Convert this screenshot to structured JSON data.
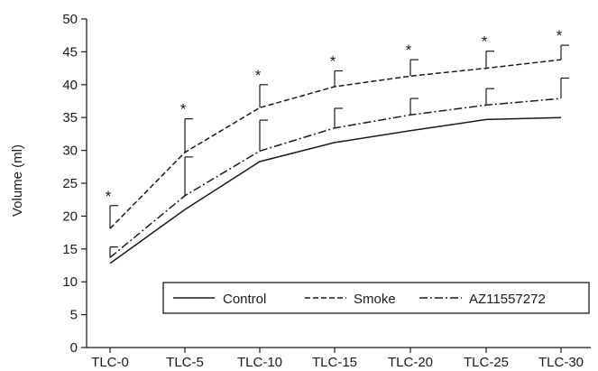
{
  "chart_data": {
    "type": "line",
    "title": "",
    "xlabel": "",
    "ylabel": "Volume (ml)",
    "ylim": [
      0,
      50
    ],
    "yticks": [
      0,
      5,
      10,
      15,
      20,
      25,
      30,
      35,
      40,
      45,
      50
    ],
    "categories": [
      "TLC-0",
      "TLC-5",
      "TLC-10",
      "TLC-15",
      "TLC-20",
      "TLC-25",
      "TLC-30"
    ],
    "legend_position": "bottom-right",
    "grid": false,
    "significance_marker": "*",
    "significant_series": "Smoke",
    "series": [
      {
        "name": "Control",
        "dash": "solid",
        "values": [
          12.8,
          21.0,
          28.3,
          31.2,
          33.0,
          34.7,
          35.0
        ],
        "errors": [
          0,
          0,
          0,
          0,
          0,
          0,
          0
        ]
      },
      {
        "name": "Smoke",
        "dash": "dashed",
        "values": [
          18.1,
          29.7,
          36.5,
          39.7,
          41.3,
          42.5,
          43.8
        ],
        "errors": [
          3.5,
          5.1,
          3.5,
          2.4,
          2.5,
          2.6,
          2.2
        ]
      },
      {
        "name": "AZ11557272",
        "dash": "dashdot",
        "values": [
          13.7,
          23.1,
          29.9,
          33.4,
          35.4,
          36.9,
          37.9
        ],
        "errors": [
          1.6,
          5.9,
          4.7,
          3.0,
          2.5,
          2.5,
          3.1
        ]
      }
    ]
  }
}
